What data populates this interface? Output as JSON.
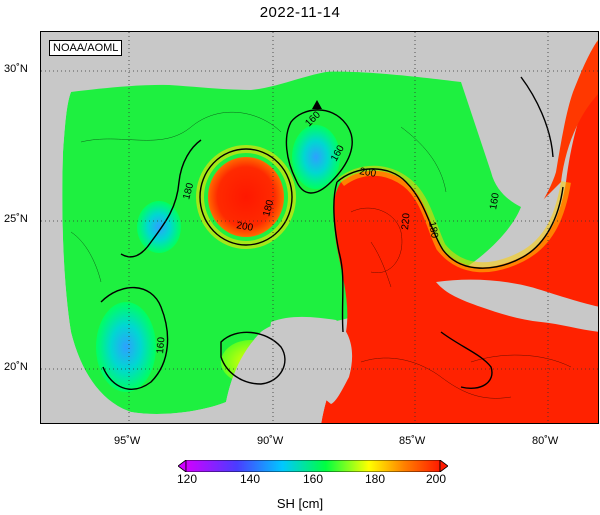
{
  "title": "2022-11-14",
  "credit": "NOAA/AOML",
  "lat_labels": [
    "30˚N",
    "25˚N",
    "20˚N"
  ],
  "lon_labels": [
    "95˚W",
    "90˚W",
    "85˚W",
    "80˚W"
  ],
  "contour_labels": [
    "160",
    "160",
    "160",
    "160",
    "180",
    "180",
    "180",
    "200",
    "200",
    "220"
  ],
  "colorbar": {
    "ticks": [
      "120",
      "140",
      "160",
      "180",
      "200"
    ],
    "label": "SH [cm]",
    "colors": [
      "#d000ff",
      "#4a3cff",
      "#00c8ff",
      "#00ff40",
      "#ffff00",
      "#ff8000",
      "#ff1a00"
    ]
  },
  "colors": {
    "land": "#c8c8c8",
    "warm": "#ff2000",
    "cool": "#00e83c"
  }
}
